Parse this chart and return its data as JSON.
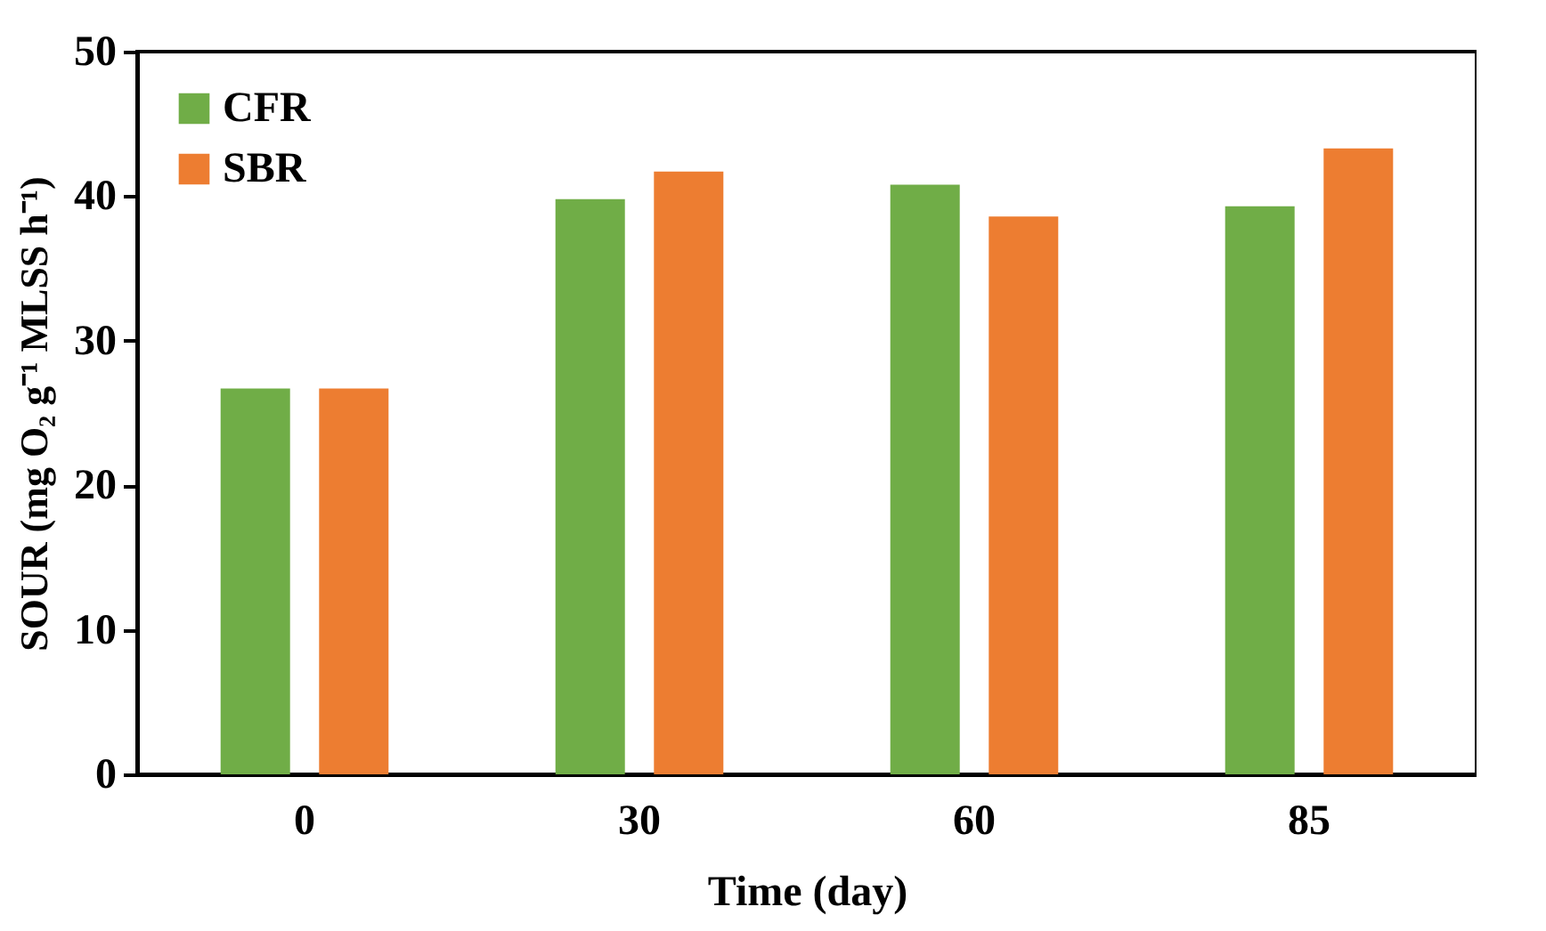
{
  "chart_data": {
    "type": "bar",
    "xlabel": "Time (day)",
    "ylabel": "SOUR (mg O₂ g⁻¹ MLSS h⁻¹)",
    "categories": [
      "0",
      "30",
      "60",
      "85"
    ],
    "series": [
      {
        "name": "CFR",
        "color": "#70ad47",
        "values": [
          26.7,
          39.8,
          40.8,
          39.3
        ]
      },
      {
        "name": "SBR",
        "color": "#ed7d31",
        "values": [
          26.7,
          41.7,
          38.6,
          43.3
        ]
      }
    ],
    "ylim": [
      0,
      50
    ],
    "yticks": [
      0,
      10,
      20,
      30,
      40,
      50
    ],
    "grid": false,
    "legend": "top left"
  }
}
